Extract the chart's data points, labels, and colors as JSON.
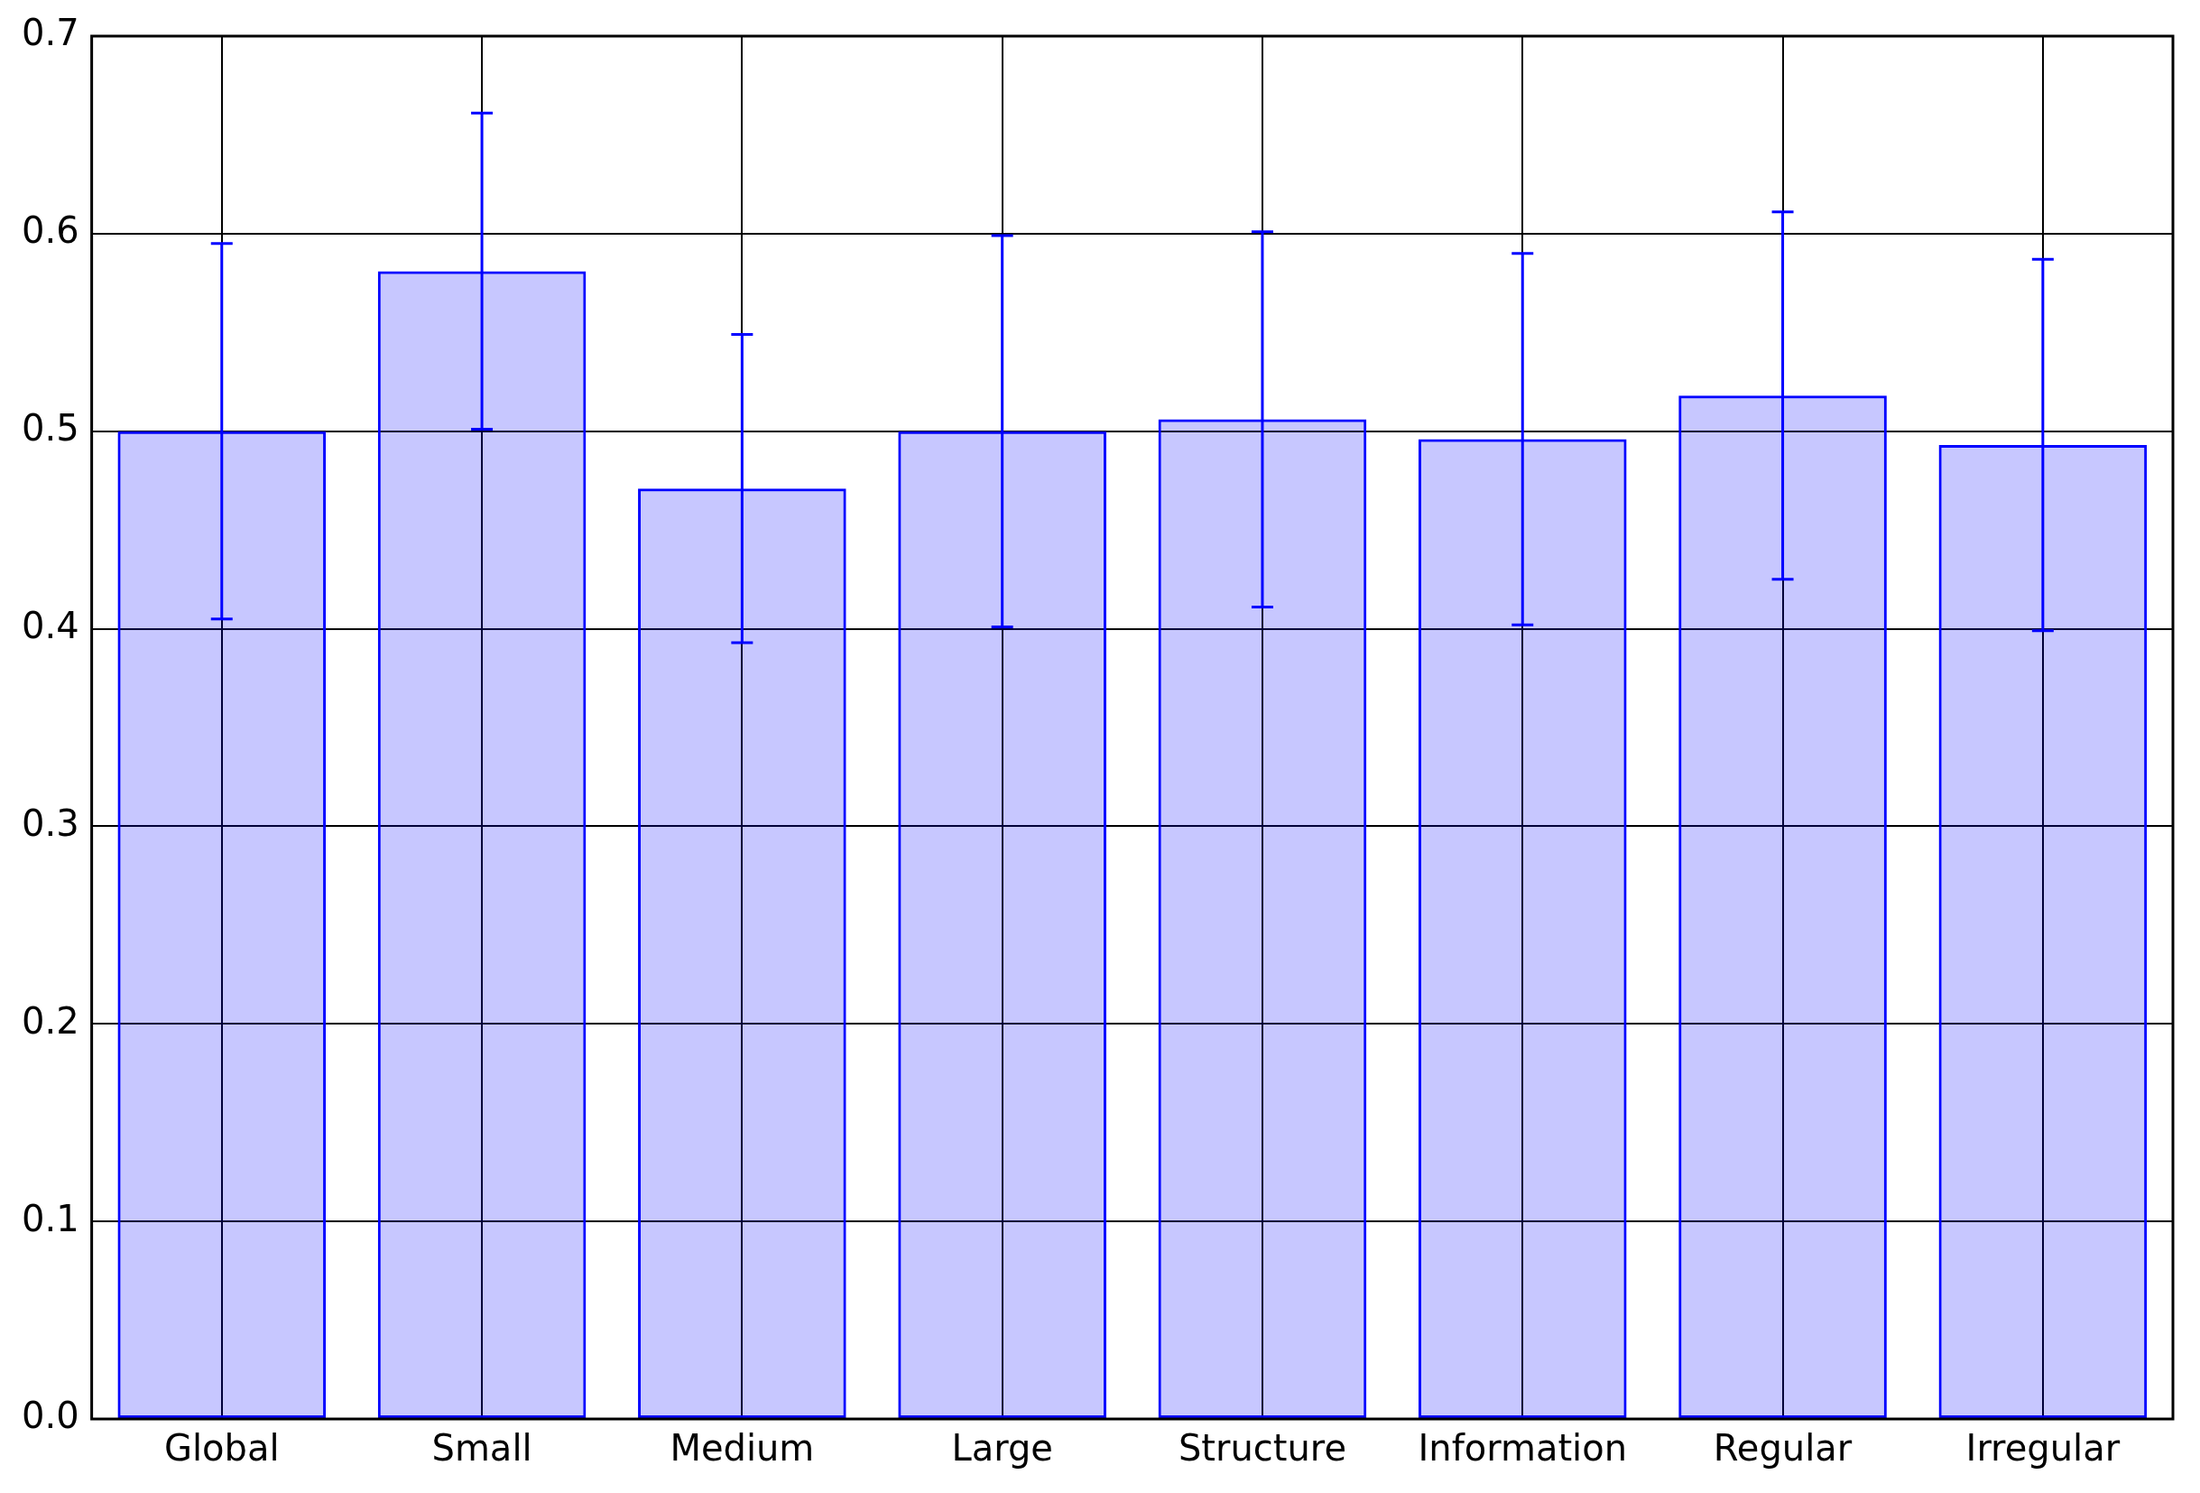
{
  "chart_data": {
    "type": "bar",
    "categories": [
      "Global",
      "Small",
      "Medium",
      "Large",
      "Structure",
      "Information",
      "Regular",
      "Irregular"
    ],
    "values": [
      0.5,
      0.581,
      0.471,
      0.5,
      0.506,
      0.496,
      0.518,
      0.493
    ],
    "errors": [
      0.095,
      0.08,
      0.078,
      0.099,
      0.095,
      0.094,
      0.093,
      0.094
    ],
    "color": "#0000ff",
    "ylim": [
      0,
      0.7
    ],
    "yticks": [
      {
        "value": 0,
        "label": "0.0"
      },
      0.1,
      0.2,
      0.3,
      0.4,
      0.5,
      0.6,
      0.7
    ],
    "grid": true
  }
}
